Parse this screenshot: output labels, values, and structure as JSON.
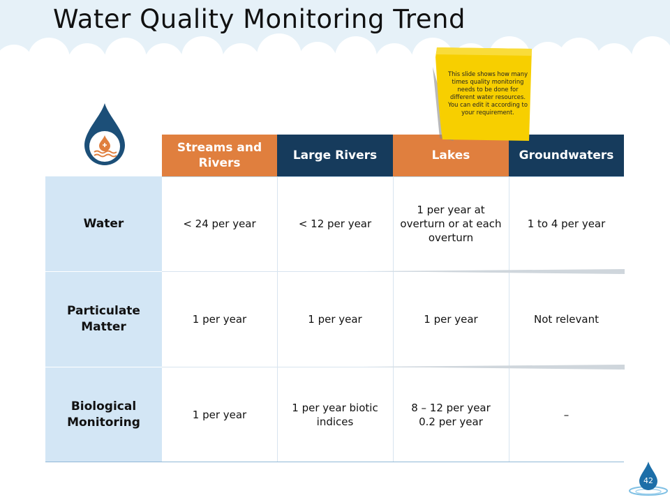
{
  "slide": {
    "title": "Water Quality Monitoring Trend",
    "page_number": "42"
  },
  "note": {
    "text": "This slide shows how many times quality monitoring needs to be done for different water resources. You can edit it according to your requirement."
  },
  "table": {
    "headers": [
      "Streams and Rivers",
      "Large Rivers",
      "Lakes",
      "Groundwaters"
    ],
    "rows": [
      {
        "label": "Water",
        "cells": [
          "< 24 per year",
          "< 12 per year",
          "1 per year at overturn or at each overturn",
          "1 to 4 per year"
        ]
      },
      {
        "label": "Particulate Matter",
        "cells": [
          "1 per year",
          "1 per year",
          "1 per year",
          "Not relevant"
        ]
      },
      {
        "label": "Biological Monitoring",
        "cells": [
          "1 per year",
          "1 per year biotic indices",
          "8 – 12 per year 0.2 per year",
          "–"
        ]
      }
    ]
  },
  "colors": {
    "orange_header": "#e07f3e",
    "navy_header": "#163b5c",
    "row_label_bg": "#d3e6f5",
    "note_yellow": "#f7cf00",
    "drop_blue": "#1c4f78"
  },
  "icons": {
    "header_icon": "water-drop-icon",
    "page_icon": "water-drop-icon"
  }
}
